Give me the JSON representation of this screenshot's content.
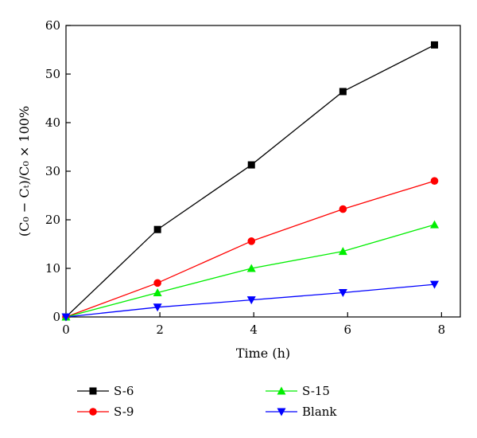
{
  "chart_data": {
    "type": "line",
    "xlabel": "Time (h)",
    "ylabel": "(C₀ − Cₜ)/C₀ × 100%",
    "xlim": [
      0,
      8.4
    ],
    "ylim": [
      0,
      60
    ],
    "x_ticks": [
      "0",
      "2",
      "4",
      "6",
      "8"
    ],
    "y_ticks": [
      "0",
      "10",
      "20",
      "30",
      "40",
      "50",
      "60"
    ],
    "grid": false,
    "legend_position": "bottom",
    "series": [
      {
        "name": "S-6",
        "color": "#000000",
        "marker": "square",
        "x": [
          0,
          1.95,
          3.95,
          5.9,
          7.85
        ],
        "values": [
          0,
          18,
          31.3,
          46.4,
          56
        ]
      },
      {
        "name": "S-9",
        "color": "#ff0000",
        "marker": "circle",
        "x": [
          0,
          1.95,
          3.95,
          5.9,
          7.85
        ],
        "values": [
          0,
          7,
          15.6,
          22.2,
          28
        ]
      },
      {
        "name": "S-15",
        "color": "#00ee00",
        "marker": "triangle-up",
        "x": [
          0,
          1.95,
          3.95,
          5.9,
          7.85
        ],
        "values": [
          0,
          5,
          10,
          13.5,
          19
        ]
      },
      {
        "name": "Blank",
        "color": "#0000ff",
        "marker": "triangle-down",
        "x": [
          0,
          1.95,
          3.95,
          5.9,
          7.85
        ],
        "values": [
          0,
          2,
          3.5,
          5,
          6.7
        ]
      }
    ]
  }
}
